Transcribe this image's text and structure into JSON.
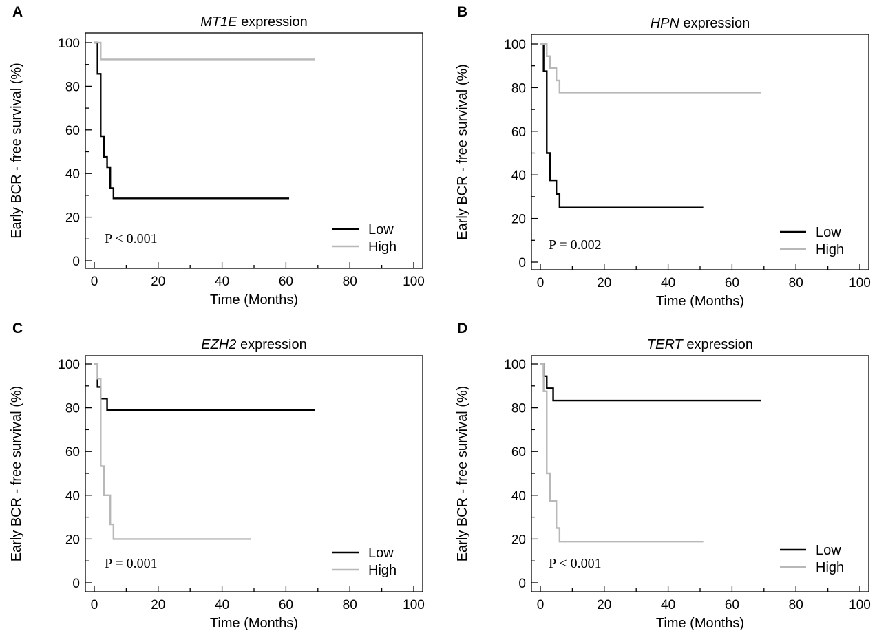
{
  "colors": {
    "low": "#000000",
    "high": "#b8b8b8"
  },
  "chart_data": [
    {
      "panel": "A",
      "type": "line",
      "step": true,
      "title_gene": "MT1E",
      "title_rest": " expression",
      "xlabel": "Time (Months)",
      "ylabel": "Early BCR - free survival (%)",
      "xlim": [
        0,
        100
      ],
      "ylim": [
        0,
        100
      ],
      "xticks": [
        0,
        20,
        40,
        60,
        80,
        100
      ],
      "yticks": [
        0,
        20,
        40,
        60,
        80,
        100
      ],
      "p_value": "P < 0.001",
      "legend_position": "bottom-right",
      "series": [
        {
          "name": "Low",
          "color": "#000000",
          "x": [
            0,
            1,
            2,
            3,
            4,
            5,
            6,
            61
          ],
          "y": [
            100,
            85.7,
            57.1,
            47.6,
            42.9,
            33.3,
            28.6,
            28.6
          ]
        },
        {
          "name": "High",
          "color": "#b8b8b8",
          "x": [
            0,
            2,
            69
          ],
          "y": [
            100,
            92.3,
            92.3
          ]
        }
      ]
    },
    {
      "panel": "B",
      "type": "line",
      "step": true,
      "title_gene": "HPN",
      "title_rest": " expression",
      "xlabel": "Time (Months)",
      "ylabel": "Early BCR - free survival (%)",
      "xlim": [
        0,
        100
      ],
      "ylim": [
        0,
        100
      ],
      "xticks": [
        0,
        20,
        40,
        60,
        80,
        100
      ],
      "yticks": [
        0,
        20,
        40,
        60,
        80,
        100
      ],
      "p_value": "P = 0.002",
      "legend_position": "bottom-right",
      "series": [
        {
          "name": "Low",
          "color": "#000000",
          "x": [
            0,
            1,
            2,
            3,
            5,
            6,
            51
          ],
          "y": [
            100,
            87.5,
            50,
            37.5,
            31.3,
            25,
            25
          ]
        },
        {
          "name": "High",
          "color": "#b8b8b8",
          "x": [
            0,
            2,
            3,
            5,
            6,
            69
          ],
          "y": [
            100,
            94.4,
            88.9,
            83.3,
            77.8,
            77.8
          ]
        }
      ]
    },
    {
      "panel": "C",
      "type": "line",
      "step": true,
      "title_gene": "EZH2",
      "title_rest": " expression",
      "xlabel": "Time (Months)",
      "ylabel": "Early BCR - free survival (%)",
      "xlim": [
        0,
        100
      ],
      "ylim": [
        0,
        100
      ],
      "xticks": [
        0,
        20,
        40,
        60,
        80,
        100
      ],
      "yticks": [
        0,
        20,
        40,
        60,
        80,
        100
      ],
      "p_value": "P = 0.001",
      "legend_position": "bottom-right",
      "series": [
        {
          "name": "Low",
          "color": "#000000",
          "x": [
            0,
            1,
            2,
            4,
            69
          ],
          "y": [
            100,
            89.5,
            84.2,
            78.9,
            78.9
          ]
        },
        {
          "name": "High",
          "color": "#b8b8b8",
          "x": [
            0,
            1,
            2,
            3,
            5,
            6,
            49
          ],
          "y": [
            100,
            93.3,
            53.3,
            40,
            26.7,
            20,
            20
          ]
        }
      ]
    },
    {
      "panel": "D",
      "type": "line",
      "step": true,
      "title_gene": "TERT",
      "title_rest": " expression",
      "xlabel": "Time (Months)",
      "ylabel": "Early BCR - free survival (%)",
      "xlim": [
        0,
        100
      ],
      "ylim": [
        0,
        100
      ],
      "xticks": [
        0,
        20,
        40,
        60,
        80,
        100
      ],
      "yticks": [
        0,
        20,
        40,
        60,
        80,
        100
      ],
      "p_value": "P < 0.001",
      "legend_position": "bottom-right",
      "series": [
        {
          "name": "Low",
          "color": "#000000",
          "x": [
            0,
            1,
            2,
            4,
            69
          ],
          "y": [
            100,
            94.4,
            88.9,
            83.3,
            83.3
          ]
        },
        {
          "name": "High",
          "color": "#b8b8b8",
          "x": [
            0,
            1,
            2,
            3,
            5,
            6,
            51
          ],
          "y": [
            100,
            87.5,
            50,
            37.5,
            25,
            18.8,
            18.8
          ]
        }
      ]
    }
  ]
}
